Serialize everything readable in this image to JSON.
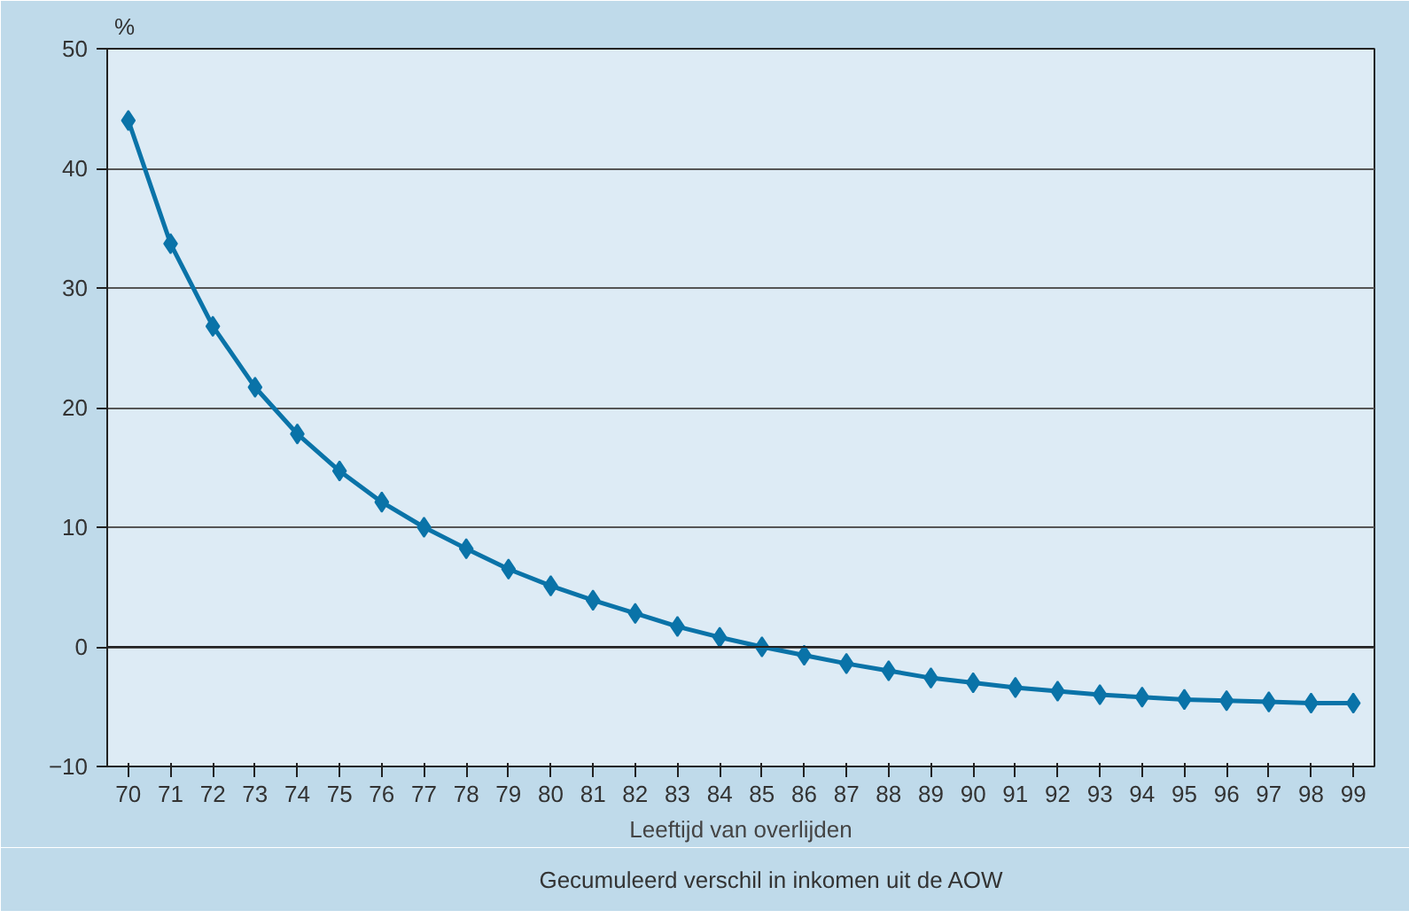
{
  "chart_data": {
    "type": "line",
    "ylabel": "%",
    "xlabel": "Leeftijd van overlijden",
    "categories": [
      "70",
      "71",
      "72",
      "73",
      "74",
      "75",
      "76",
      "77",
      "78",
      "79",
      "80",
      "81",
      "82",
      "83",
      "84",
      "85",
      "86",
      "87",
      "88",
      "89",
      "90",
      "91",
      "92",
      "93",
      "94",
      "95",
      "96",
      "97",
      "98",
      "99"
    ],
    "series": [
      {
        "name": "Gecumuleerd verschil in inkomen uit de AOW",
        "color": "#0a73a8",
        "values": [
          44,
          33.7,
          26.8,
          21.7,
          17.8,
          14.7,
          12.1,
          10.0,
          8.2,
          6.5,
          5.1,
          3.9,
          2.8,
          1.7,
          0.8,
          0,
          -0.7,
          -1.4,
          -2.0,
          -2.6,
          -3.0,
          -3.4,
          -3.7,
          -4.0,
          -4.2,
          -4.4,
          -4.5,
          -4.6,
          -4.7,
          -4.7
        ]
      }
    ],
    "ylim": [
      -10,
      50
    ],
    "yticks": [
      -10,
      0,
      10,
      20,
      30,
      40,
      50
    ],
    "grid": "y",
    "legend": "bottom",
    "marker": "diamond",
    "line_style": "solid"
  }
}
